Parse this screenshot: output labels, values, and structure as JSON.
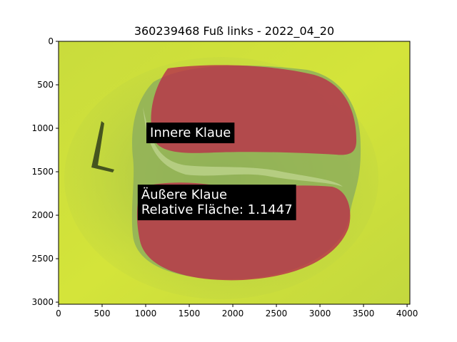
{
  "chart_data": {
    "type": "image",
    "title": "360239468 Fuß links - 2022_04_20",
    "xlim": [
      0,
      4032
    ],
    "ylim": [
      3024,
      0
    ],
    "x_ticks": [
      0,
      500,
      1000,
      1500,
      2000,
      2500,
      3000,
      3500,
      4000
    ],
    "y_ticks": [
      0,
      500,
      1000,
      1500,
      2000,
      2500,
      3000
    ],
    "annotations": [
      {
        "name": "inner-claw",
        "lines": [
          "Innere Klaue"
        ],
        "x": 1000,
        "y": 1000
      },
      {
        "name": "outer-claw",
        "lines": [
          "Äußere Klaue",
          "Relative Fläche: 1.1447"
        ],
        "x": 900,
        "y": 1800
      }
    ],
    "colors": {
      "background": "#cfe23a",
      "segmentation_overlay": "#b8324a",
      "annotation_box": "#000000",
      "annotation_text": "#ffffff"
    }
  }
}
